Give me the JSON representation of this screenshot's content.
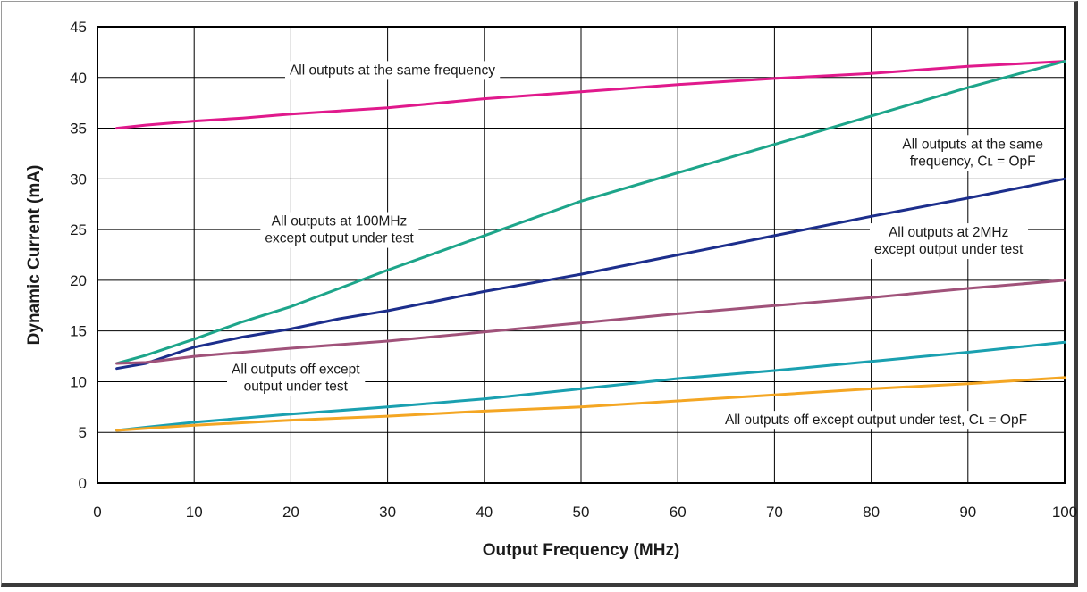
{
  "chart_data": {
    "type": "line",
    "xlabel": "Output Frequency (MHz)",
    "ylabel": "Dynamic Current (mA)",
    "xlim": [
      0,
      100
    ],
    "ylim": [
      0,
      45
    ],
    "xticks": [
      0,
      10,
      20,
      30,
      40,
      50,
      60,
      70,
      80,
      90,
      100
    ],
    "yticks": [
      0,
      5,
      10,
      15,
      20,
      25,
      30,
      35,
      40,
      45
    ],
    "grid": true,
    "series": [
      {
        "color": "#e0198c",
        "x": [
          2,
          5,
          10,
          15,
          20,
          30,
          40,
          50,
          60,
          70,
          80,
          90,
          100
        ],
        "y": [
          35,
          35.3,
          35.7,
          36,
          36.4,
          37,
          37.9,
          38.6,
          39.3,
          39.9,
          40.4,
          41.1,
          41.6
        ]
      },
      {
        "color": "#1da58a",
        "x": [
          2,
          5,
          10,
          15,
          20,
          25,
          30,
          40,
          50,
          60,
          70,
          80,
          90,
          100
        ],
        "y": [
          11.8,
          12.6,
          14.2,
          15.9,
          17.4,
          19.2,
          21,
          24.4,
          27.8,
          30.6,
          33.4,
          36.2,
          39,
          41.6
        ]
      },
      {
        "color": "#1c2e8c",
        "x": [
          2,
          5,
          10,
          15,
          20,
          25,
          30,
          40,
          50,
          60,
          70,
          80,
          90,
          100
        ],
        "y": [
          11.3,
          11.8,
          13.4,
          14.4,
          15.2,
          16.2,
          17,
          18.9,
          20.6,
          22.5,
          24.4,
          26.3,
          28.1,
          30
        ]
      },
      {
        "color": "#a0527a",
        "x": [
          2,
          5,
          10,
          20,
          30,
          40,
          50,
          60,
          70,
          80,
          90,
          100
        ],
        "y": [
          11.8,
          11.9,
          12.5,
          13.3,
          14,
          14.9,
          15.8,
          16.7,
          17.5,
          18.3,
          19.2,
          20
        ]
      },
      {
        "color": "#1aa0b0",
        "x": [
          2,
          5,
          10,
          20,
          30,
          40,
          50,
          60,
          70,
          80,
          90,
          100
        ],
        "y": [
          5.2,
          5.5,
          6,
          6.8,
          7.5,
          8.3,
          9.3,
          10.3,
          11.1,
          12,
          12.9,
          13.9
        ]
      },
      {
        "color": "#f4a623",
        "x": [
          2,
          5,
          10,
          20,
          30,
          40,
          50,
          60,
          70,
          80,
          90,
          100
        ],
        "y": [
          5.2,
          5.4,
          5.7,
          6.2,
          6.6,
          7.1,
          7.5,
          8.1,
          8.7,
          9.3,
          9.8,
          10.4
        ]
      }
    ],
    "annotations": [
      {
        "lines": [
          "All outputs at the same frequency"
        ],
        "x": 30.5,
        "y": 40.3
      },
      {
        "lines": [
          "All outputs at the same",
          "frequency, Cʟ = OpF"
        ],
        "x": 90.5,
        "y": 33
      },
      {
        "lines": [
          "All outputs at 100MHz",
          "except output under test"
        ],
        "x": 25,
        "y": 25.4
      },
      {
        "lines": [
          "All outputs at 2MHz",
          "except output under test"
        ],
        "x": 88,
        "y": 24.3
      },
      {
        "lines": [
          "All outputs off except",
          "output under test"
        ],
        "x": 20.5,
        "y": 10.8
      },
      {
        "lines": [
          "All outputs off except output under test, Cʟ = OpF"
        ],
        "x": 80.5,
        "y": 5.8
      }
    ]
  }
}
